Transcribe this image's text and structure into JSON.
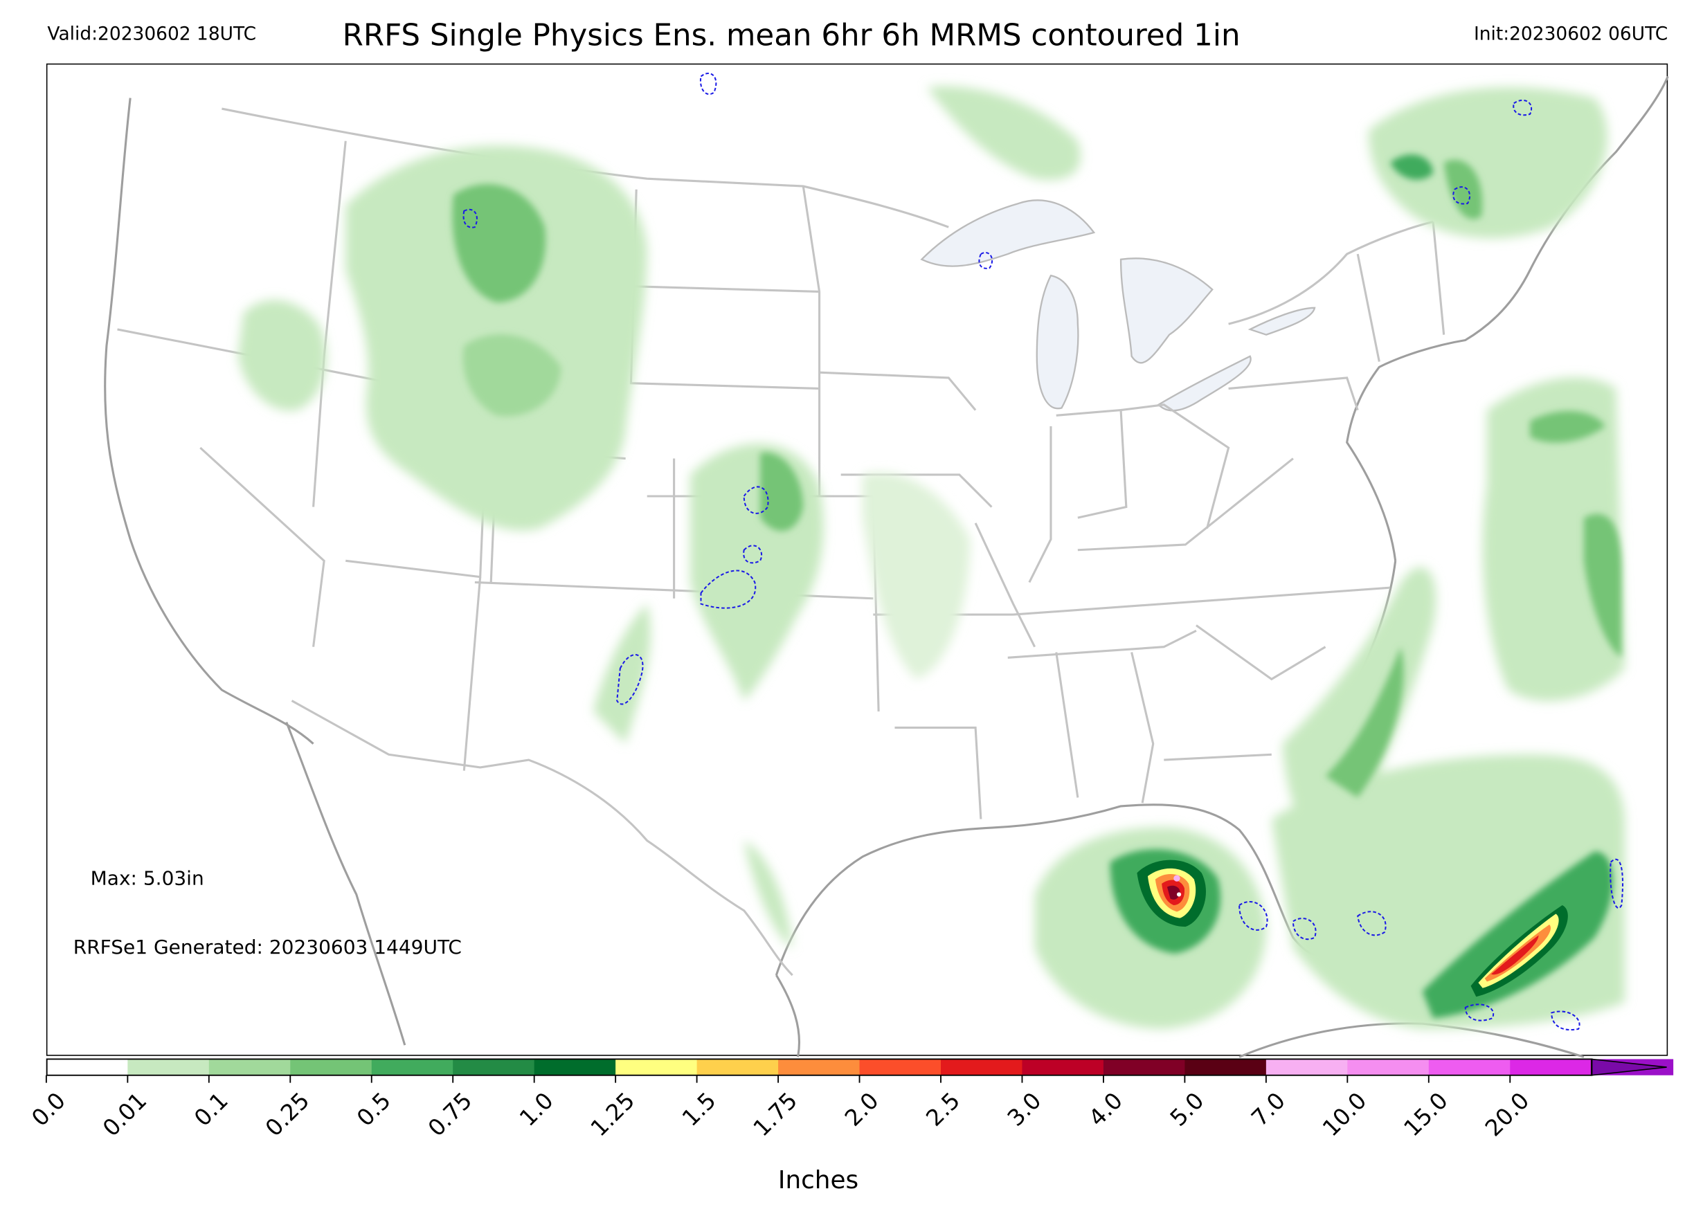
{
  "header": {
    "valid": "Valid:20230602 18UTC",
    "title": "RRFS Single Physics Ens. mean 6hr 6h MRMS contoured 1in",
    "init": "Init:20230602 06UTC"
  },
  "annotations": {
    "max": "Max: 5.03in",
    "generated": "RRFSe1 Generated: 20230603 1449UTC"
  },
  "colorbar": {
    "units_label": "Inches",
    "extend": "max",
    "ticks": [
      "0.0",
      "0.01",
      "0.1",
      "0.25",
      "0.5",
      "0.75",
      "1.0",
      "1.25",
      "1.5",
      "1.75",
      "2.0",
      "2.5",
      "3.0",
      "4.0",
      "5.0",
      "7.0",
      "10.0",
      "15.0",
      "20.0"
    ],
    "colors": [
      "#ffffff",
      "#c7e9c0",
      "#a1d99b",
      "#74c476",
      "#41ab5d",
      "#238b45",
      "#006d2c",
      "#ffff80",
      "#fed04c",
      "#fd8d3c",
      "#fc4e2a",
      "#e31a1c",
      "#bd0026",
      "#800026",
      "#5a0014",
      "#f7b0f2",
      "#f58ef0",
      "#ee5cf0",
      "#dc28e6",
      "#9b10c8"
    ],
    "extend_color": "#7a0aa8"
  },
  "map": {
    "region": "CONUS",
    "contour_threshold_in": 1.0,
    "contour_color": "#1a1ae6",
    "max_precip_in": 5.03
  }
}
